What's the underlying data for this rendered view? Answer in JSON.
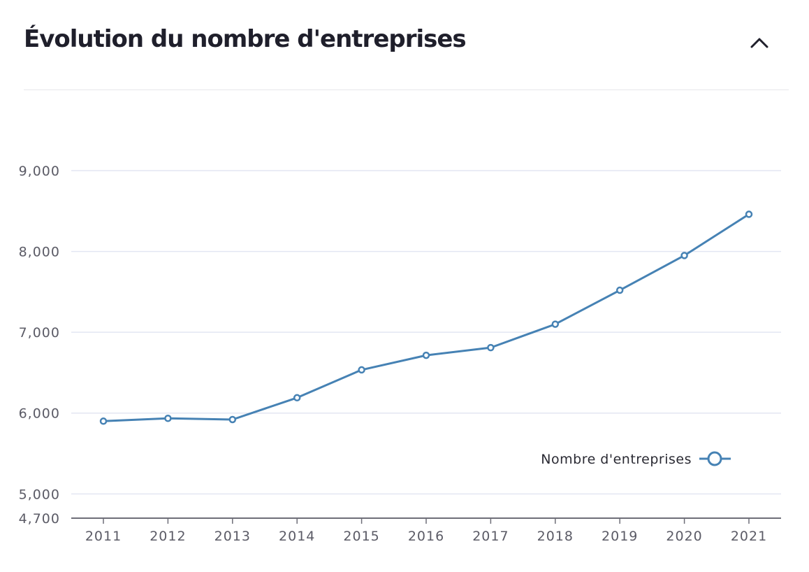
{
  "header": {
    "title": "Évolution du nombre d'entreprises",
    "collapse_icon": "chevron-up-icon"
  },
  "colors": {
    "series": "#4682b4",
    "grid": "#e3e6f2",
    "axis": "#6e6e78",
    "title": "#1f1f2b"
  },
  "chart_data": {
    "type": "line",
    "title": "",
    "xlabel": "",
    "ylabel": "",
    "x": [
      "2011",
      "2012",
      "2013",
      "2014",
      "2015",
      "2016",
      "2017",
      "2018",
      "2019",
      "2020",
      "2021"
    ],
    "series": [
      {
        "name": "Nombre d'entreprises",
        "values": [
          5900,
          5935,
          5920,
          6190,
          6535,
          6715,
          6810,
          7100,
          7520,
          7950,
          8460
        ]
      }
    ],
    "ylim": [
      4700,
      9000
    ],
    "y_ticks": [
      {
        "value": 4700,
        "label": "4,700"
      },
      {
        "value": 5000,
        "label": "5,000"
      },
      {
        "value": 6000,
        "label": "6,000"
      },
      {
        "value": 7000,
        "label": "7,000"
      },
      {
        "value": 8000,
        "label": "8,000"
      },
      {
        "value": 9000,
        "label": "9,000"
      }
    ],
    "grid": true,
    "legend": "bottom-right"
  }
}
